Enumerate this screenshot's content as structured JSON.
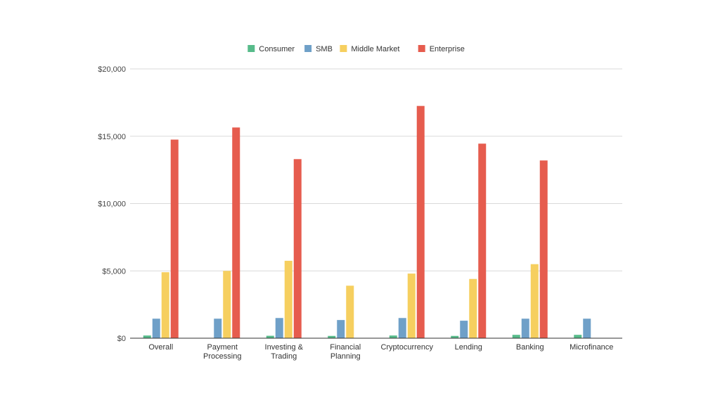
{
  "chart_data": {
    "type": "bar",
    "categories": [
      [
        "Overall"
      ],
      [
        "Payment",
        "Processing"
      ],
      [
        "Investing &",
        "Trading"
      ],
      [
        "Financial",
        "Planning"
      ],
      [
        "Cryptocurrency"
      ],
      [
        "Lending"
      ],
      [
        "Banking"
      ],
      [
        "Microfinance"
      ]
    ],
    "series": [
      {
        "name": "Consumer",
        "color": "#57bb8a",
        "values": [
          200,
          0,
          180,
          170,
          200,
          170,
          250,
          250
        ]
      },
      {
        "name": "SMB",
        "color": "#6fa0c8",
        "values": [
          1450,
          1450,
          1500,
          1350,
          1500,
          1300,
          1450,
          1450
        ]
      },
      {
        "name": "Middle Market",
        "color": "#f6cf5f",
        "values": [
          4900,
          5000,
          5750,
          3900,
          4800,
          4400,
          5500,
          0
        ]
      },
      {
        "name": "Enterprise",
        "color": "#e65c4e",
        "values": [
          14750,
          15650,
          13300,
          0,
          17250,
          14450,
          13200,
          0
        ]
      }
    ],
    "yticks": [
      "$0",
      "$5,000",
      "$10,000",
      "$15,000",
      "$20,000"
    ],
    "ylim": [
      0,
      20000
    ],
    "ytick_values": [
      0,
      5000,
      10000,
      15000,
      20000
    ],
    "legend_position": "top-center",
    "grid": true,
    "title": "",
    "xlabel": "",
    "ylabel": ""
  }
}
